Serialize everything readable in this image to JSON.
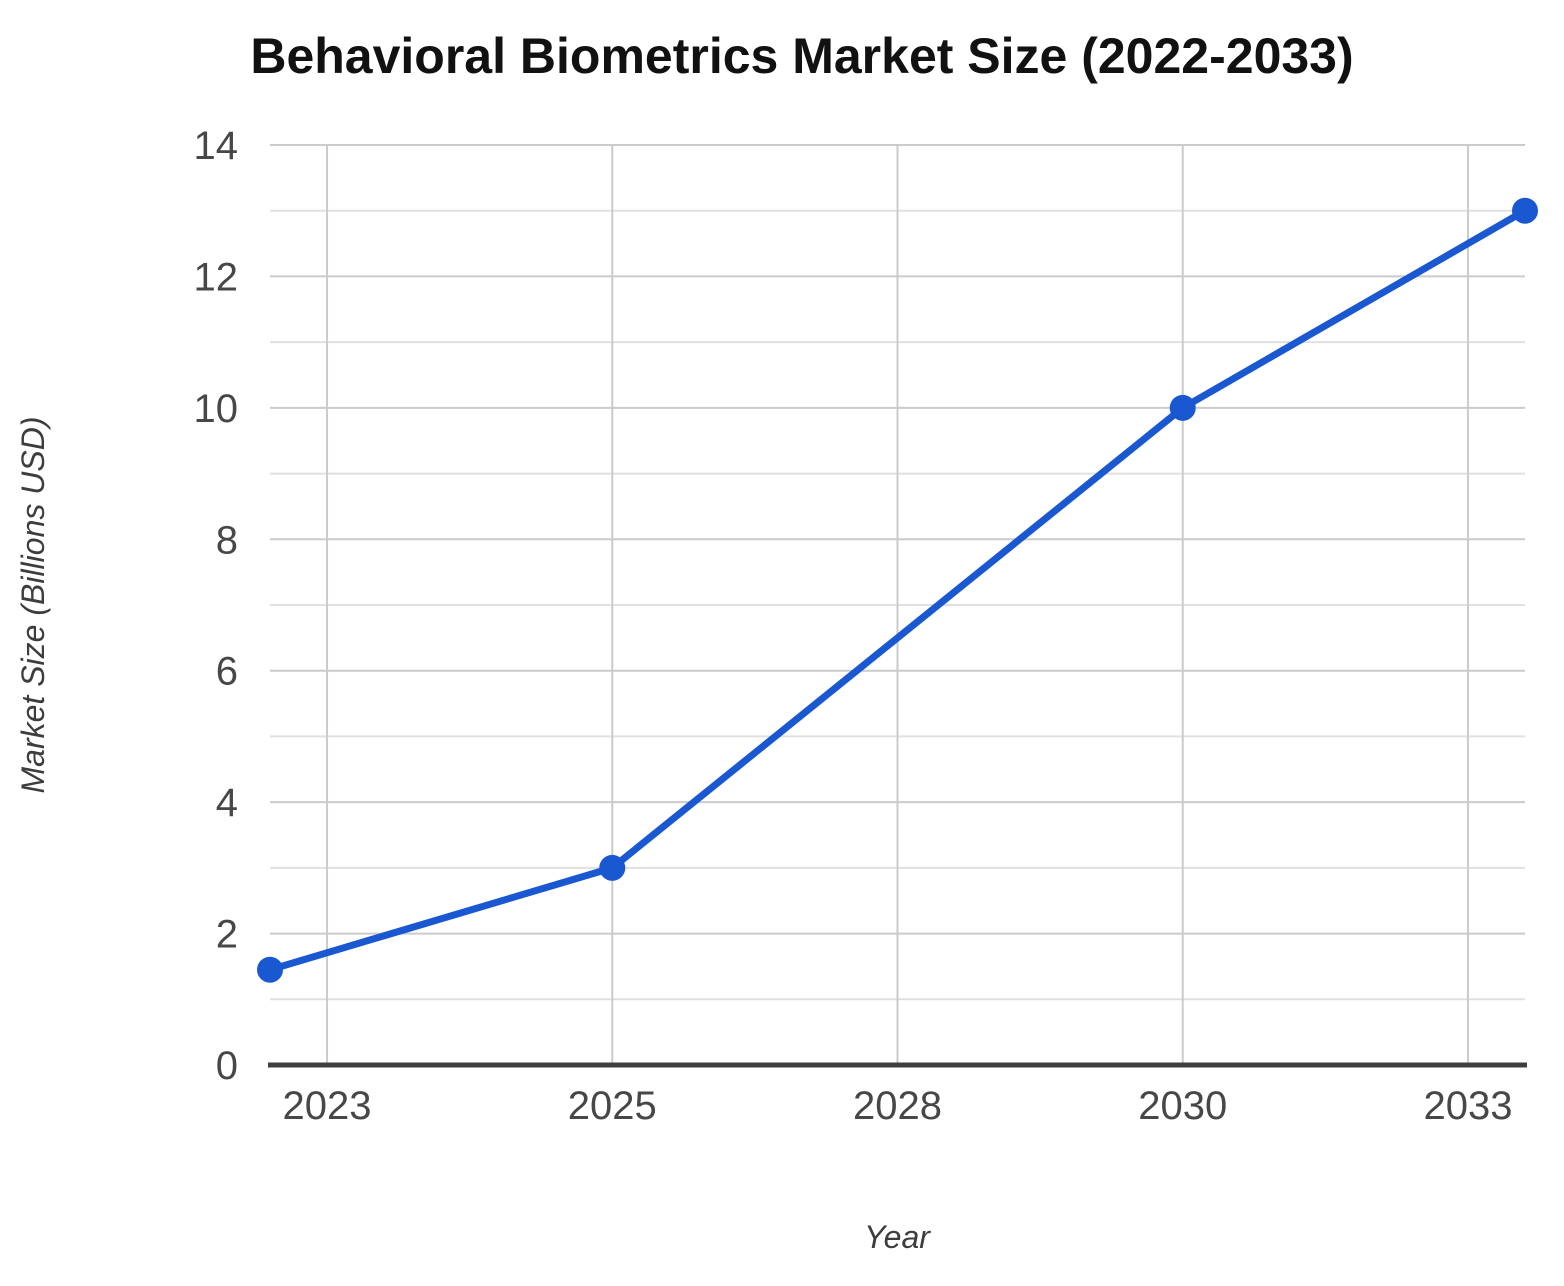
{
  "chart_data": {
    "type": "line",
    "title": "Behavioral Biometrics Market Size (2022-2033)",
    "xlabel": "Year",
    "ylabel": "Market Size (Billions USD)",
    "x_range": [
      2022,
      2033
    ],
    "y_range": [
      0,
      14
    ],
    "x_ticks": [
      {
        "pos": 2022.5,
        "label": "2023"
      },
      {
        "pos": 2025,
        "label": "2025"
      },
      {
        "pos": 2027.5,
        "label": "2028"
      },
      {
        "pos": 2030,
        "label": "2030"
      },
      {
        "pos": 2032.5,
        "label": "2033"
      }
    ],
    "y_tick_labels": [
      "0",
      "2",
      "4",
      "6",
      "8",
      "10",
      "12",
      "14"
    ],
    "y_major_step": 2,
    "y_minor_step": 1,
    "grid": true,
    "legend": "none",
    "series": [
      {
        "name": "Market Size (Billions USD)",
        "x": [
          2022,
          2025,
          2030,
          2033
        ],
        "values": [
          1.45,
          3,
          10,
          13
        ]
      }
    ],
    "colors": {
      "line": "#1a58d1",
      "grid_major": "#cbcbcb",
      "grid_minor": "#e0e0e0",
      "axis": "#3f3f3f",
      "tick_label": "#474747",
      "axis_title": "#3d3d3d",
      "title": "#111111",
      "background": "#ffffff"
    }
  }
}
